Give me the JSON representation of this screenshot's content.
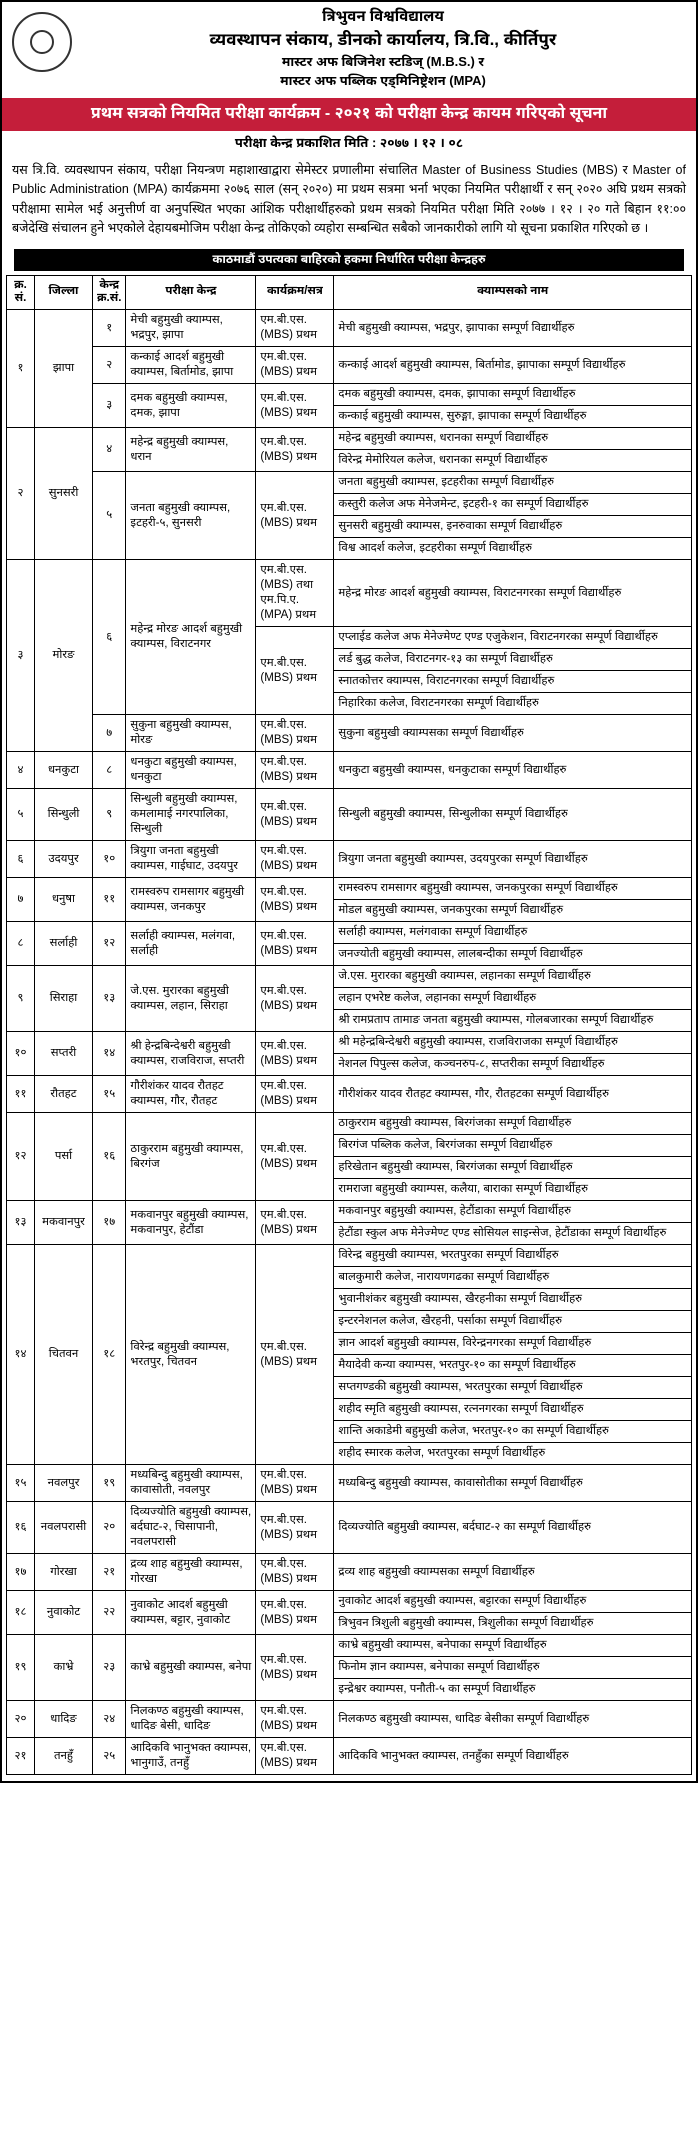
{
  "header": {
    "university": "त्रिभुवन विश्वविद्यालय",
    "office": "व्यवस्थापन संकाय, डीनको कार्यालय, त्रि.वि., कीर्तिपुर",
    "program_line1": "मास्टर अफ बिजिनेश स्टडिज् (M.B.S.) र",
    "program_line2": "मास्टर अफ पब्लिक एड्मिनिष्ट्रेशन (MPA)"
  },
  "red_banner": "प्रथम सत्रको नियमित परीक्षा कार्यक्रम - २०२१ को परीक्षा केन्द्र कायम गरिएको सूचना",
  "publish_date": "परीक्षा केन्द्र प्रकाशित मिति : २०७७ । १२ । ०८",
  "notice_para": "यस त्रि.वि. व्यवस्थापन संकाय, परीक्षा नियन्त्रण महाशाखाद्वारा सेमेस्टर प्रणालीमा संचालित Master of Business Studies (MBS) र Master of Public Administration (MPA) कार्यक्रममा २०७६ साल (सन् २०२०) मा प्रथम सत्रमा भर्ना भएका नियमित परीक्षार्थी र सन् २०२० अघि प्रथम सत्रको परीक्षामा सामेल भई अनुत्तीर्ण वा अनुपस्थित भएका आंशिक परीक्षार्थीहरुको प्रथम सत्रको नियमित परीक्षा मिति २०७७ । १२ । २० गते बिहान ११:०० बजेदेखि संचालन हुने भएकोले देहायबमोजिम परीक्षा केन्द्र तोकिएको व्यहोरा सम्बन्धित सबैको जानकारीको लागि यो सूचना प्रकाशित गरिएको छ ।",
  "section_title": "काठमाडौं उपत्यका बाहिरको हकमा निर्धारित परीक्षा केन्द्रहरु",
  "columns": {
    "sn": "क्र.\nसं.",
    "district": "जिल्ला",
    "center_no": "केन्द्र\nक्र.सं.",
    "center": "परीक्षा केन्द्र",
    "program": "कार्यक्रम/सत्र",
    "campus": "क्याम्पसको नाम"
  },
  "mbs_first": "एम.बी.एस. (MBS) प्रथम",
  "mbs_mpa_first": "एम.बी.एस. (MBS) तथा एम.पि.ए. (MPA) प्रथम",
  "districts": [
    {
      "sn": "१",
      "name": "झापा",
      "centers": [
        {
          "no": "१",
          "center": "मेची बहुमुखी क्याम्पस, भद्रपुर, झापा",
          "prog": "mbs",
          "camps": [
            "मेची बहुमुखी क्याम्पस, भद्रपुर, झापाका सम्पूर्ण विद्यार्थीहरु"
          ]
        },
        {
          "no": "२",
          "center": "कन्काई आदर्श बहुमुखी क्याम्पस, बिर्तामोड, झापा",
          "prog": "mbs",
          "camps": [
            "कन्काई आदर्श बहुमुखी क्याम्पस, बिर्तामोड, झापाका सम्पूर्ण विद्यार्थीहरु"
          ]
        },
        {
          "no": "३",
          "center": "दमक बहुमुखी क्याम्पस, दमक, झापा",
          "prog": "mbs",
          "camps": [
            "दमक बहुमुखी क्याम्पस, दमक, झापाका सम्पूर्ण विद्यार्थीहरु",
            "कन्काई बहुमुखी क्याम्पस, सुरुङ्गा, झापाका सम्पूर्ण विद्यार्थीहरु"
          ]
        }
      ]
    },
    {
      "sn": "२",
      "name": "सुनसरी",
      "centers": [
        {
          "no": "४",
          "center": "महेन्द्र बहुमुखी क्याम्पस, धरान",
          "prog": "mbs",
          "camps": [
            "महेन्द्र बहुमुखी क्याम्पस, धरानका सम्पूर्ण विद्यार्थीहरु",
            "विरेन्द्र मेमोरियल कलेज, धरानका सम्पूर्ण विद्यार्थीहरु"
          ]
        },
        {
          "no": "५",
          "center": "जनता बहुमुखी क्याम्पस, इटहरी-५, सुनसरी",
          "prog": "mbs",
          "camps": [
            "जनता बहुमुखी क्याम्पस, इटहरीका सम्पूर्ण विद्यार्थीहरु",
            "कस्तुरी कलेज अफ मेनेजमेन्ट, इटहरी-१ का सम्पूर्ण विद्यार्थीहरु",
            "सुनसरी बहुमुखी क्याम्पस, इनरुवाका सम्पूर्ण विद्यार्थीहरु",
            "विश्व आदर्श कलेज, इटहरीका सम्पूर्ण विद्यार्थीहरु"
          ]
        }
      ]
    },
    {
      "sn": "३",
      "name": "मोरङ",
      "centers": [
        {
          "no": "६",
          "center": "महेन्द्र मोरङ आदर्श बहुमुखी क्याम्पस, विराटनगर",
          "segments": [
            {
              "prog": "mbs_mpa",
              "camps": [
                "महेन्द्र मोरङ आदर्श बहुमुखी क्याम्पस, विराटनगरका सम्पूर्ण विद्यार्थीहरु"
              ]
            },
            {
              "prog": "mbs",
              "camps": [
                "एप्लाईड कलेज अफ मेनेज्मेण्ट एण्ड एजुकेशन, विराटनगरका सम्पूर्ण विद्यार्थीहरु",
                "लर्ड बुद्ध कलेज, विराटनगर-१३ का सम्पूर्ण विद्यार्थीहरु",
                "स्नातकोत्तर क्याम्पस, विराटनगरका सम्पूर्ण विद्यार्थीहरु",
                "निहारिका कलेज, विराटनगरका सम्पूर्ण विद्यार्थीहरु"
              ]
            }
          ]
        },
        {
          "no": "७",
          "center": "सुकुना बहुमुखी क्याम्पस, मोरङ",
          "prog": "mbs",
          "camps": [
            "सुकुना बहुमुखी क्याम्पसका सम्पूर्ण विद्यार्थीहरु"
          ]
        }
      ]
    },
    {
      "sn": "४",
      "name": "धनकुटा",
      "centers": [
        {
          "no": "८",
          "center": "धनकुटा बहुमुखी क्याम्पस, धनकुटा",
          "prog": "mbs",
          "camps": [
            "धनकुटा बहुमुखी क्याम्पस, धनकुटाका सम्पूर्ण विद्यार्थीहरु"
          ]
        }
      ]
    },
    {
      "sn": "५",
      "name": "सिन्धुली",
      "centers": [
        {
          "no": "९",
          "center": "सिन्धुली बहुमुखी क्याम्पस, कमलामाई नगरपालिका, सिन्धुली",
          "prog": "mbs",
          "camps": [
            "सिन्धुली बहुमुखी क्याम्पस, सिन्धुलीका सम्पूर्ण विद्यार्थीहरु"
          ]
        }
      ]
    },
    {
      "sn": "६",
      "name": "उदयपुर",
      "centers": [
        {
          "no": "१०",
          "center": "त्रियुगा जनता बहुमुखी क्याम्पस, गाईघाट, उदयपुर",
          "prog": "mbs",
          "camps": [
            "त्रियुगा जनता बहुमुखी क्याम्पस, उदयपुरका सम्पूर्ण विद्यार्थीहरु"
          ]
        }
      ]
    },
    {
      "sn": "७",
      "name": "धनुषा",
      "centers": [
        {
          "no": "११",
          "center": "रामस्वरुप रामसागर बहुमुखी क्याम्पस, जनकपुर",
          "prog": "mbs",
          "camps": [
            "रामस्वरुप रामसागर बहुमुखी क्याम्पस, जनकपुरका सम्पूर्ण विद्यार्थीहरु",
            "मोडल बहुमुखी क्याम्पस, जनकपुरका सम्पूर्ण विद्यार्थीहरु"
          ]
        }
      ]
    },
    {
      "sn": "८",
      "name": "सर्लाही",
      "centers": [
        {
          "no": "१२",
          "center": "सर्लाही क्याम्पस, मलंगवा, सर्लाही",
          "prog": "mbs",
          "camps": [
            "सर्लाही क्याम्पस, मलंगवाका सम्पूर्ण विद्यार्थीहरु",
            "जनज्योती बहुमुखी क्याम्पस, लालबन्दीका सम्पूर्ण विद्यार्थीहरु"
          ]
        }
      ]
    },
    {
      "sn": "९",
      "name": "सिराहा",
      "centers": [
        {
          "no": "१३",
          "center": "जे.एस. मुरारका बहुमुखी क्याम्पस, लहान, सिराहा",
          "prog": "mbs",
          "camps": [
            "जे.एस. मुरारका बहुमुखी क्याम्पस, लहानका सम्पूर्ण विद्यार्थीहरु",
            "लहान एभरेष्ट कलेज, लहानका सम्पूर्ण विद्यार्थीहरु",
            "श्री रामप्रताप तामाङ जनता बहुमुखी क्याम्पस, गोलबजारका सम्पूर्ण विद्यार्थीहरु"
          ]
        }
      ]
    },
    {
      "sn": "१०",
      "name": "सप्तरी",
      "centers": [
        {
          "no": "१४",
          "center": "श्री हेन्द्रबिन्देश्वरी बहुमुखी क्याम्पस, राजविराज, सप्तरी",
          "prog": "mbs",
          "camps": [
            "श्री महेन्द्रबिन्देश्वरी बहुमुखी क्याम्पस, राजविराजका सम्पूर्ण विद्यार्थीहरु",
            "नेशनल पिपुल्स कलेज, कञ्चनरुप-८, सप्तरीका सम्पूर्ण विद्यार्थीहरु"
          ]
        }
      ]
    },
    {
      "sn": "११",
      "name": "रौतहट",
      "centers": [
        {
          "no": "१५",
          "center": "गौरीशंकर यादव रौतहट क्याम्पस, गौर, रौतहट",
          "prog": "mbs",
          "camps": [
            "गौरीशंकर यादव रौतहट क्याम्पस, गौर, रौतहटका सम्पूर्ण विद्यार्थीहरु"
          ]
        }
      ]
    },
    {
      "sn": "१२",
      "name": "पर्सा",
      "centers": [
        {
          "no": "१६",
          "center": "ठाकुरराम बहुमुखी क्याम्पस, बिरगंज",
          "prog": "mbs",
          "camps": [
            "ठाकुरराम बहुमुखी क्याम्पस, बिरगंजका सम्पूर्ण विद्यार्थीहरु",
            "बिरगंज पब्लिक कलेज, बिरगंजका सम्पूर्ण विद्यार्थीहरु",
            "हरिखेतान बहुमुखी क्याम्पस, बिरगंजका सम्पूर्ण विद्यार्थीहरु",
            "रामराजा बहुमुखी क्याम्पस, कलैया, बाराका सम्पूर्ण विद्यार्थीहरु"
          ]
        }
      ]
    },
    {
      "sn": "१३",
      "name": "मकवानपुर",
      "centers": [
        {
          "no": "१७",
          "center": "मकवानपुर बहुमुखी क्याम्पस, मकवानपुर, हेटौंडा",
          "prog": "mbs",
          "camps": [
            "मकवानपुर बहुमुखी क्याम्पस, हेटौंडाका सम्पूर्ण विद्यार्थीहरु",
            "हेटौंडा स्कुल अफ मेनेज्मेण्ट एण्ड सोसियल साइन्सेज, हेटौंडाका सम्पूर्ण विद्यार्थीहरु"
          ]
        }
      ]
    },
    {
      "sn": "१४",
      "name": "चितवन",
      "centers": [
        {
          "no": "१८",
          "center": "विरेन्द्र बहुमुखी क्याम्पस, भरतपुर, चितवन",
          "prog": "mbs",
          "camps": [
            "विरेन्द्र बहुमुखी क्याम्पस, भरतपुरका सम्पूर्ण विद्यार्थीहरु",
            "बालकुमारी कलेज, नारायणगढका सम्पूर्ण विद्यार्थीहरु",
            "भुवानीशंकर बहुमुखी क्याम्पस, खैरहनीका सम्पूर्ण विद्यार्थीहरु",
            "इन्टरनेशनल कलेज, खैरहनी, पर्साका सम्पूर्ण विद्यार्थीहरु",
            "ज्ञान आदर्श बहुमुखी क्याम्पस, विरेन्द्रनगरका सम्पूर्ण विद्यार्थीहरु",
            "मैयादेवी कन्या क्याम्पस, भरतपुर-१० का सम्पूर्ण विद्यार्थीहरु",
            "सप्तगण्डकी बहुमुखी क्याम्पस, भरतपुरका सम्पूर्ण विद्यार्थीहरु",
            "शहीद स्मृति बहुमुखी क्याम्पस, रत्ननगरका सम्पूर्ण विद्यार्थीहरु",
            "शान्ति अकाडेमी बहुमुखी कलेज, भरतपुर-१० का सम्पूर्ण विद्यार्थीहरु",
            "शहीद स्मारक कलेज, भरतपुरका सम्पूर्ण विद्यार्थीहरु"
          ]
        }
      ]
    },
    {
      "sn": "१५",
      "name": "नवलपुर",
      "centers": [
        {
          "no": "१९",
          "center": "मध्यबिन्दु बहुमुखी क्याम्पस, कावासोती, नवलपुर",
          "prog": "mbs",
          "camps": [
            "मध्यबिन्दु बहुमुखी क्याम्पस, कावासोतीका सम्पूर्ण विद्यार्थीहरु"
          ]
        }
      ]
    },
    {
      "sn": "१६",
      "name": "नवलपरासी",
      "centers": [
        {
          "no": "२०",
          "center": "दिव्यज्योति बहुमुखी क्याम्पस, बर्दघाट-२, चिसापानी, नवलपरासी",
          "prog": "mbs",
          "camps": [
            "दिव्यज्योति बहुमुखी क्याम्पस, बर्दघाट-२ का सम्पूर्ण विद्यार्थीहरु"
          ]
        }
      ]
    },
    {
      "sn": "१७",
      "name": "गोरखा",
      "centers": [
        {
          "no": "२१",
          "center": "द्रव्य शाह बहुमुखी क्याम्पस, गोरखा",
          "prog": "mbs",
          "camps": [
            "द्रव्य शाह बहुमुखी क्याम्पसका सम्पूर्ण विद्यार्थीहरु"
          ]
        }
      ]
    },
    {
      "sn": "१८",
      "name": "नुवाकोट",
      "centers": [
        {
          "no": "२२",
          "center": "नुवाकोट आदर्श बहुमुखी क्याम्पस, बट्टार, नुवाकोट",
          "prog": "mbs",
          "camps": [
            "नुवाकोट आदर्श बहुमुखी क्याम्पस, बट्टारका सम्पूर्ण विद्यार्थीहरु",
            "त्रिभुवन त्रिशुली बहुमुखी क्याम्पस, त्रिशुलीका सम्पूर्ण विद्यार्थीहरु"
          ]
        }
      ]
    },
    {
      "sn": "१९",
      "name": "काभ्रे",
      "centers": [
        {
          "no": "२३",
          "center": "काभ्रे बहुमुखी क्याम्पस, बनेपा",
          "prog": "mbs",
          "camps": [
            "काभ्रे बहुमुखी क्याम्पस, बनेपाका सम्पूर्ण विद्यार्थीहरु",
            "फिनोम ज्ञान क्याम्पस, बनेपाका सम्पूर्ण विद्यार्थीहरु",
            "इन्द्रेश्वर क्याम्पस, पनौती-५ का सम्पूर्ण विद्यार्थीहरु"
          ]
        }
      ]
    },
    {
      "sn": "२०",
      "name": "धादिङ",
      "centers": [
        {
          "no": "२४",
          "center": "निलकण्ठ बहुमुखी क्याम्पस, धादिङ बेसी, धादिङ",
          "prog": "mbs",
          "camps": [
            "निलकण्ठ बहुमुखी क्याम्पस, धादिङ बेसीका सम्पूर्ण विद्यार्थीहरु"
          ]
        }
      ]
    },
    {
      "sn": "२१",
      "name": "तनहुँ",
      "centers": [
        {
          "no": "२५",
          "center": "आदिकवि भानुभक्त क्याम्पस, भानुगाउँ, तनहुँ",
          "prog": "mbs",
          "camps": [
            "आदिकवि भानुभक्त क्याम्पस, तनहुँका सम्पूर्ण विद्यार्थीहरु"
          ]
        }
      ]
    }
  ]
}
